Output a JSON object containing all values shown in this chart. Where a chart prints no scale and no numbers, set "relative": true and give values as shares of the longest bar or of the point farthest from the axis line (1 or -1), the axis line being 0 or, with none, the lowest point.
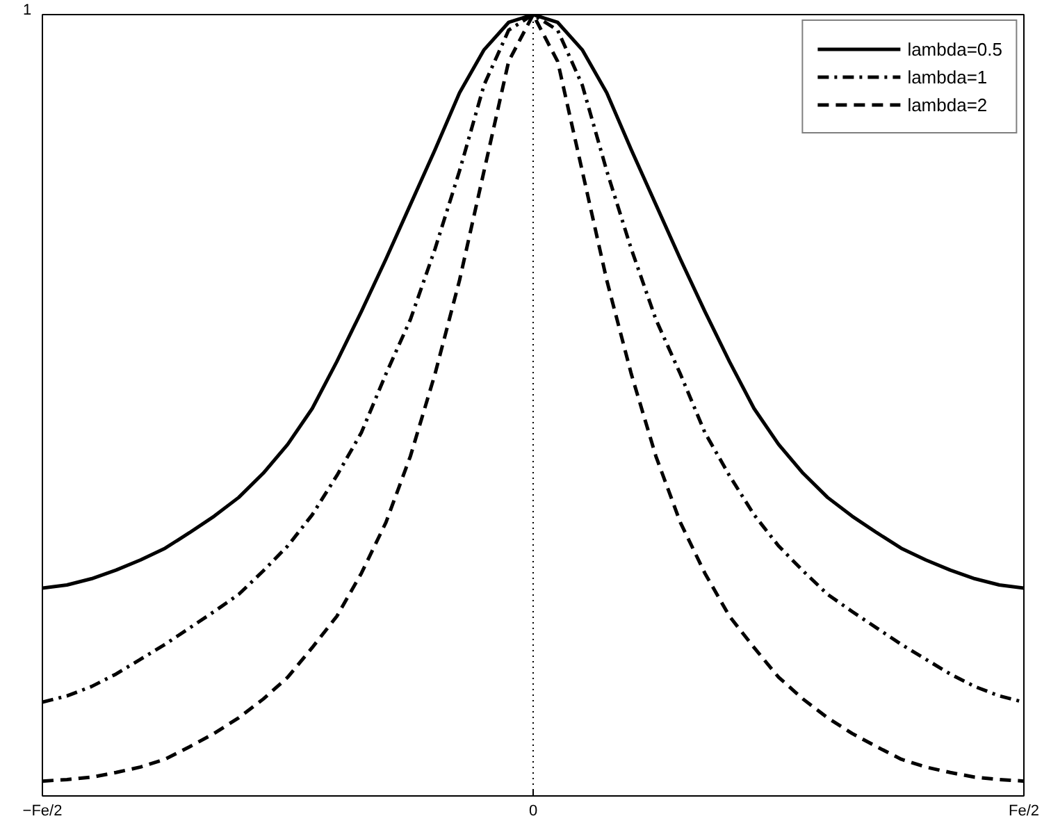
{
  "chart_data": {
    "type": "line",
    "relative": true,
    "categories": [
      "−Fe/2",
      null,
      null,
      null,
      null,
      null,
      null,
      null,
      null,
      null,
      null,
      null,
      null,
      null,
      null,
      null,
      null,
      null,
      null,
      null,
      "0",
      null,
      null,
      null,
      null,
      null,
      null,
      null,
      null,
      null,
      null,
      null,
      null,
      null,
      null,
      null,
      null,
      null,
      null,
      null,
      "Fe/2"
    ],
    "grid": "x",
    "legend": "top right",
    "annotations": [
      "1"
    ],
    "series": [
      {
        "name": "lambda=0.5",
        "color": "#000000",
        "line_style": "solid",
        "values": [
          0.266,
          0.27,
          0.278,
          0.289,
          0.302,
          0.317,
          0.337,
          0.358,
          0.382,
          0.413,
          0.45,
          0.496,
          0.556,
          0.62,
          0.687,
          0.757,
          0.827,
          0.9,
          0.955,
          0.99,
          1,
          0.99,
          0.955,
          0.9,
          0.827,
          0.757,
          0.687,
          0.62,
          0.556,
          0.496,
          0.45,
          0.413,
          0.382,
          0.358,
          0.337,
          0.317,
          0.302,
          0.289,
          0.278,
          0.27,
          0.266
        ]
      },
      {
        "name": "lambda=1",
        "color": "#000000",
        "line_style": "dashdot",
        "values": [
          0.12,
          0.128,
          0.14,
          0.156,
          0.175,
          0.194,
          0.215,
          0.236,
          0.258,
          0.288,
          0.32,
          0.36,
          0.41,
          0.465,
          0.54,
          0.61,
          0.7,
          0.8,
          0.91,
          0.98,
          1,
          0.98,
          0.91,
          0.8,
          0.7,
          0.61,
          0.54,
          0.465,
          0.41,
          0.36,
          0.32,
          0.288,
          0.258,
          0.236,
          0.215,
          0.194,
          0.175,
          0.156,
          0.14,
          0.128,
          0.12
        ]
      },
      {
        "name": "lambda=2",
        "color": "#000000",
        "line_style": "dashed",
        "values": [
          0.019,
          0.021,
          0.024,
          0.03,
          0.037,
          0.047,
          0.063,
          0.08,
          0.1,
          0.124,
          0.152,
          0.19,
          0.23,
          0.285,
          0.35,
          0.435,
          0.54,
          0.66,
          0.8,
          0.94,
          1,
          0.94,
          0.8,
          0.66,
          0.54,
          0.435,
          0.35,
          0.285,
          0.23,
          0.19,
          0.152,
          0.124,
          0.1,
          0.08,
          0.063,
          0.047,
          0.037,
          0.03,
          0.024,
          0.021,
          0.019
        ]
      }
    ]
  }
}
